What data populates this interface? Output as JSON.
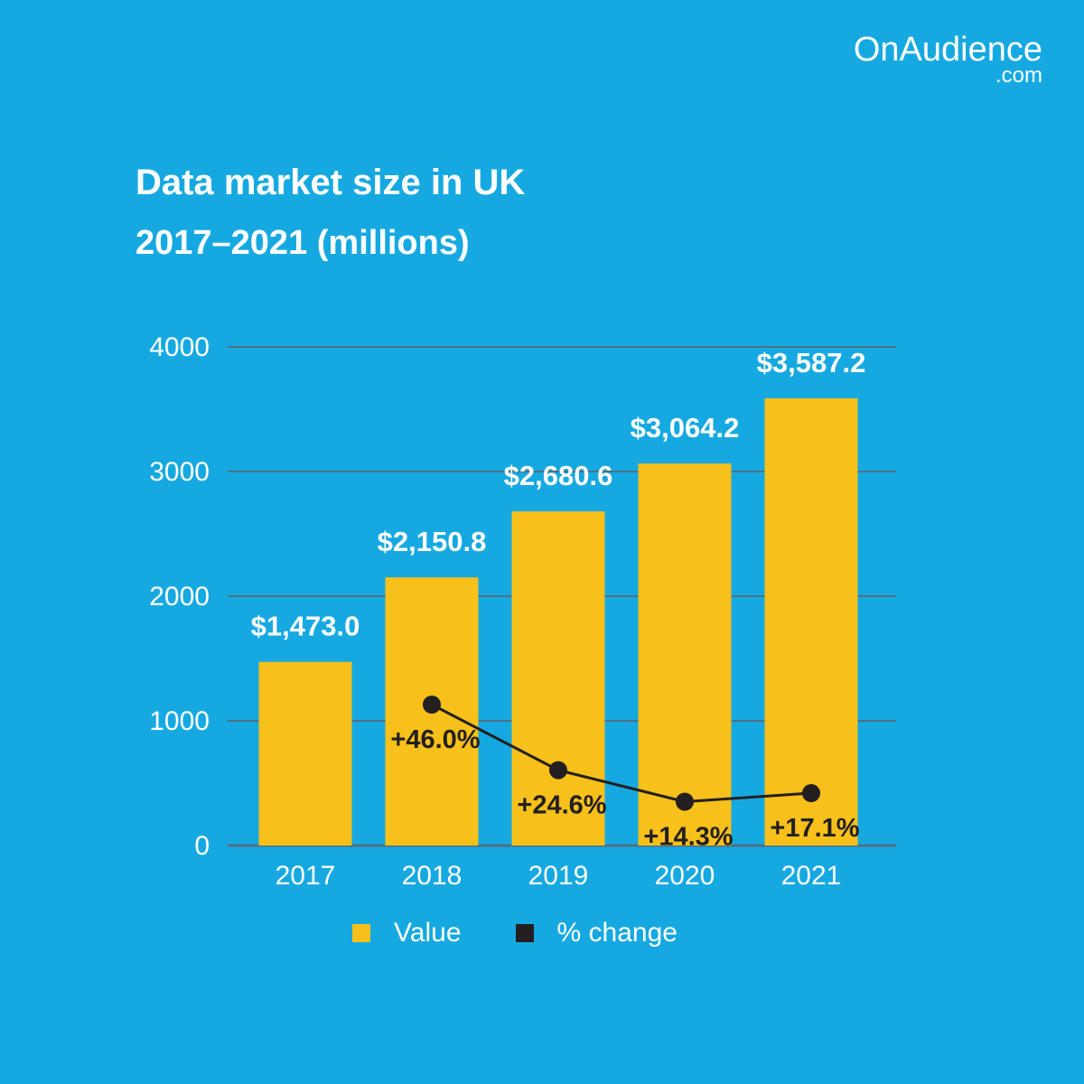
{
  "brand": {
    "name": "OnAudience",
    "domain": ".com"
  },
  "colors": {
    "background": "#16a9e1",
    "bar": "#f7c01a",
    "line": "#231f20",
    "grid": "#4f6f82",
    "text": "#ffffff"
  },
  "chart_data": {
    "type": "bar",
    "title": "Data market size in UK",
    "subtitle": "2017–2021 (millions)",
    "categories": [
      "2017",
      "2018",
      "2019",
      "2020",
      "2021"
    ],
    "series": [
      {
        "name": "Value",
        "type": "bar",
        "values": [
          1473.0,
          2150.8,
          2680.6,
          3064.2,
          3587.2
        ],
        "labels": [
          "$1,473.0",
          "$2,150.8",
          "$2,680.6",
          "$3,064.2",
          "$3,587.2"
        ]
      },
      {
        "name": "% change",
        "type": "line",
        "values": [
          null,
          46.0,
          24.6,
          14.3,
          17.1
        ],
        "labels": [
          "",
          "+46.0%",
          "+24.6%",
          "+14.3%",
          "+17.1%"
        ]
      }
    ],
    "yticks": [
      "0",
      "1000",
      "2000",
      "3000",
      "4000"
    ],
    "ylim": [
      0,
      4000
    ],
    "grid": true,
    "legend": "bottom"
  }
}
